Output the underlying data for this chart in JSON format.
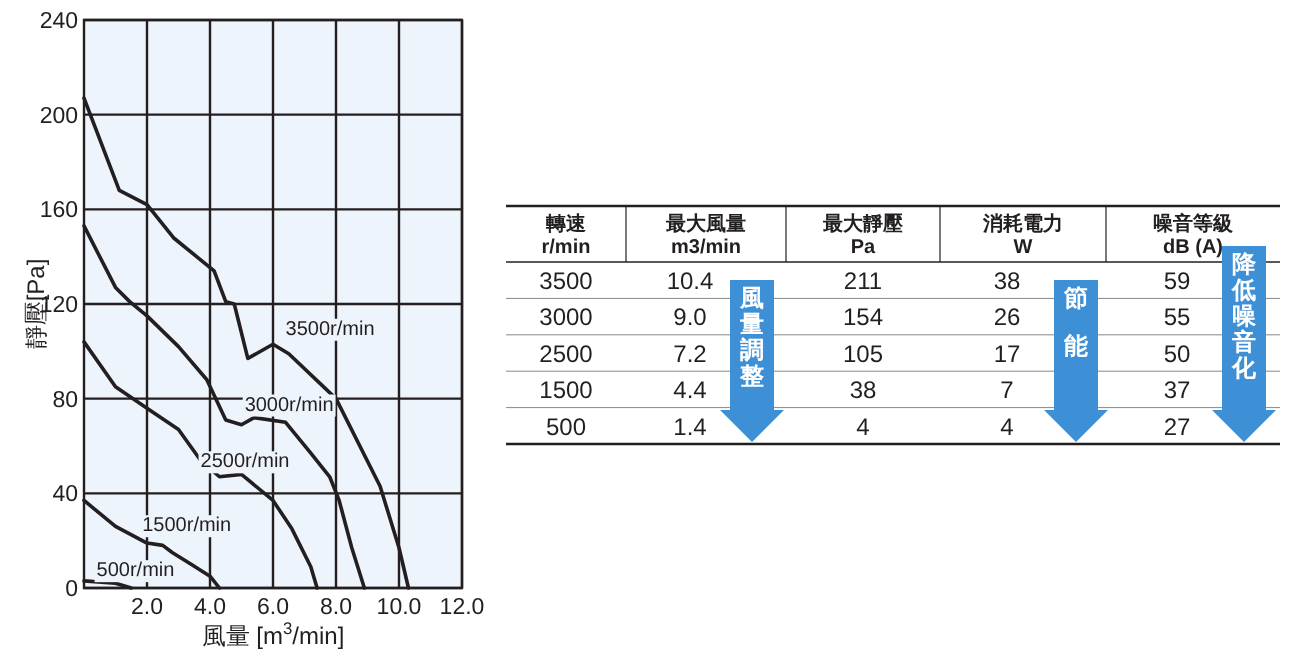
{
  "chart_data": [
    {
      "type": "line",
      "xlabel": "風量 [m$^{3}$/min]",
      "ylabel": "靜壓[Pa]",
      "xlim": [
        0,
        12
      ],
      "xticks": [
        {
          "value": 2,
          "label": "2.0"
        },
        {
          "value": 4,
          "label": "4.0"
        },
        {
          "value": 6,
          "label": "6.0"
        },
        {
          "value": 8,
          "label": "8.0"
        },
        {
          "value": 10,
          "label": "10.0"
        },
        {
          "value": 12,
          "label": "12.0"
        }
      ],
      "ylim": [
        0,
        240
      ],
      "yticks": [
        0,
        40,
        80,
        120,
        160,
        200,
        240
      ],
      "grid": true,
      "marker": "none",
      "line_style": "solid",
      "series": [
        {
          "name": "3500r/min",
          "color": "#231f20",
          "x": [
            0,
            1.12,
            2.0,
            2.84,
            4.13,
            4.5,
            4.77,
            5.2,
            6.0,
            6.5,
            8.0,
            9.4,
            10.0,
            10.3
          ],
          "values": [
            207,
            168,
            162,
            148,
            134,
            121,
            120,
            97,
            103,
            99,
            80,
            43,
            17,
            0
          ]
        },
        {
          "name": "3000r/min",
          "color": "#231f20",
          "x": [
            0,
            1.0,
            1.45,
            2.0,
            3.0,
            3.9,
            4.5,
            5.0,
            5.4,
            6.4,
            7.2,
            7.8,
            8.1,
            8.5,
            8.9
          ],
          "values": [
            153,
            127,
            121,
            115,
            102,
            88,
            71,
            69,
            72,
            70,
            57,
            47,
            37,
            17,
            0
          ]
        },
        {
          "name": "2500r/min",
          "color": "#231f20",
          "x": [
            0,
            1.0,
            2.0,
            3.0,
            3.7,
            4.3,
            5.0,
            6.0,
            6.6,
            7.2,
            7.4
          ],
          "values": [
            104,
            85,
            76,
            67,
            54,
            47,
            48,
            37,
            25,
            9,
            0
          ]
        },
        {
          "name": "1500r/min",
          "color": "#231f20",
          "x": [
            0,
            1.0,
            2.0,
            2.5,
            2.8,
            3.4,
            4.0,
            4.3
          ],
          "values": [
            37,
            26,
            19,
            18,
            15,
            10,
            5,
            0
          ]
        },
        {
          "name": "500r/min",
          "color": "#231f20",
          "x": [
            0,
            1.0,
            1.5
          ],
          "values": [
            3,
            2,
            0
          ]
        }
      ]
    },
    {
      "type": "heatmap",
      "ylabel": "轉速\nr/min",
      "categories": [
        "最大風量\nm3/min",
        "最大靜壓\nPa",
        "消耗電力\nW",
        "噪音等級\ndB (A)"
      ],
      "y_categories": [
        "3500",
        "3000",
        "2500",
        "1500",
        "500"
      ],
      "cells": [
        [
          10.4,
          211,
          38,
          59
        ],
        [
          9.0,
          154,
          26,
          55
        ],
        [
          7.2,
          105,
          17,
          50
        ],
        [
          4.4,
          38,
          7,
          37
        ],
        [
          1.4,
          4,
          4,
          27
        ]
      ],
      "cell_labels": [
        [
          "10.4",
          "211",
          "38",
          "59"
        ],
        [
          "9.0",
          "154",
          "26",
          "55"
        ],
        [
          "7.2",
          "105",
          "17",
          "50"
        ],
        [
          "4.4",
          "38",
          "7",
          "37"
        ],
        [
          "1.4",
          "4",
          "4",
          "27"
        ]
      ],
      "annotations": [
        "風量調整",
        "節能",
        "降低噪音化"
      ]
    }
  ]
}
